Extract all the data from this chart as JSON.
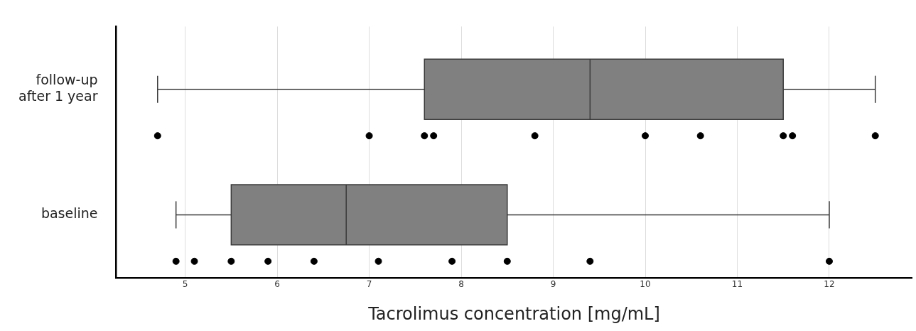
{
  "chart_data": {
    "type": "box",
    "orientation": "horizontal",
    "xlabel": "Tacrolimus concentration [mg/mL]",
    "categories": [
      "follow-up after 1 year",
      "baseline"
    ],
    "color": "#808080",
    "boxes": [
      {
        "low": 4.7,
        "q1": 7.6,
        "median": 9.4,
        "q3": 11.5,
        "high": 12.5
      },
      {
        "low": 4.9,
        "q1": 5.5,
        "median": 6.75,
        "q3": 8.5,
        "high": 12.0
      }
    ],
    "xlim": [
      4.25,
      12.9
    ],
    "xticks": [
      5,
      6,
      7,
      8,
      9,
      10,
      11,
      12
    ],
    "grid": "x",
    "legend": false,
    "series": [
      {
        "type": "scatter",
        "color": "#000000",
        "x": [
          "follow-up after 1 year",
          "follow-up after 1 year",
          "follow-up after 1 year",
          "follow-up after 1 year",
          "follow-up after 1 year",
          "follow-up after 1 year",
          "follow-up after 1 year",
          "follow-up after 1 year",
          "follow-up after 1 year",
          "follow-up after 1 year"
        ],
        "values": [
          4.7,
          7.0,
          7.6,
          7.7,
          8.8,
          10.0,
          10.6,
          11.5,
          11.6,
          12.5
        ]
      },
      {
        "type": "scatter",
        "color": "#000000",
        "x": [
          "baseline",
          "baseline",
          "baseline",
          "baseline",
          "baseline",
          "baseline",
          "baseline",
          "baseline",
          "baseline",
          "baseline"
        ],
        "values": [
          4.9,
          5.1,
          5.5,
          5.9,
          6.4,
          7.1,
          7.9,
          8.5,
          9.4,
          12.0
        ]
      }
    ]
  }
}
